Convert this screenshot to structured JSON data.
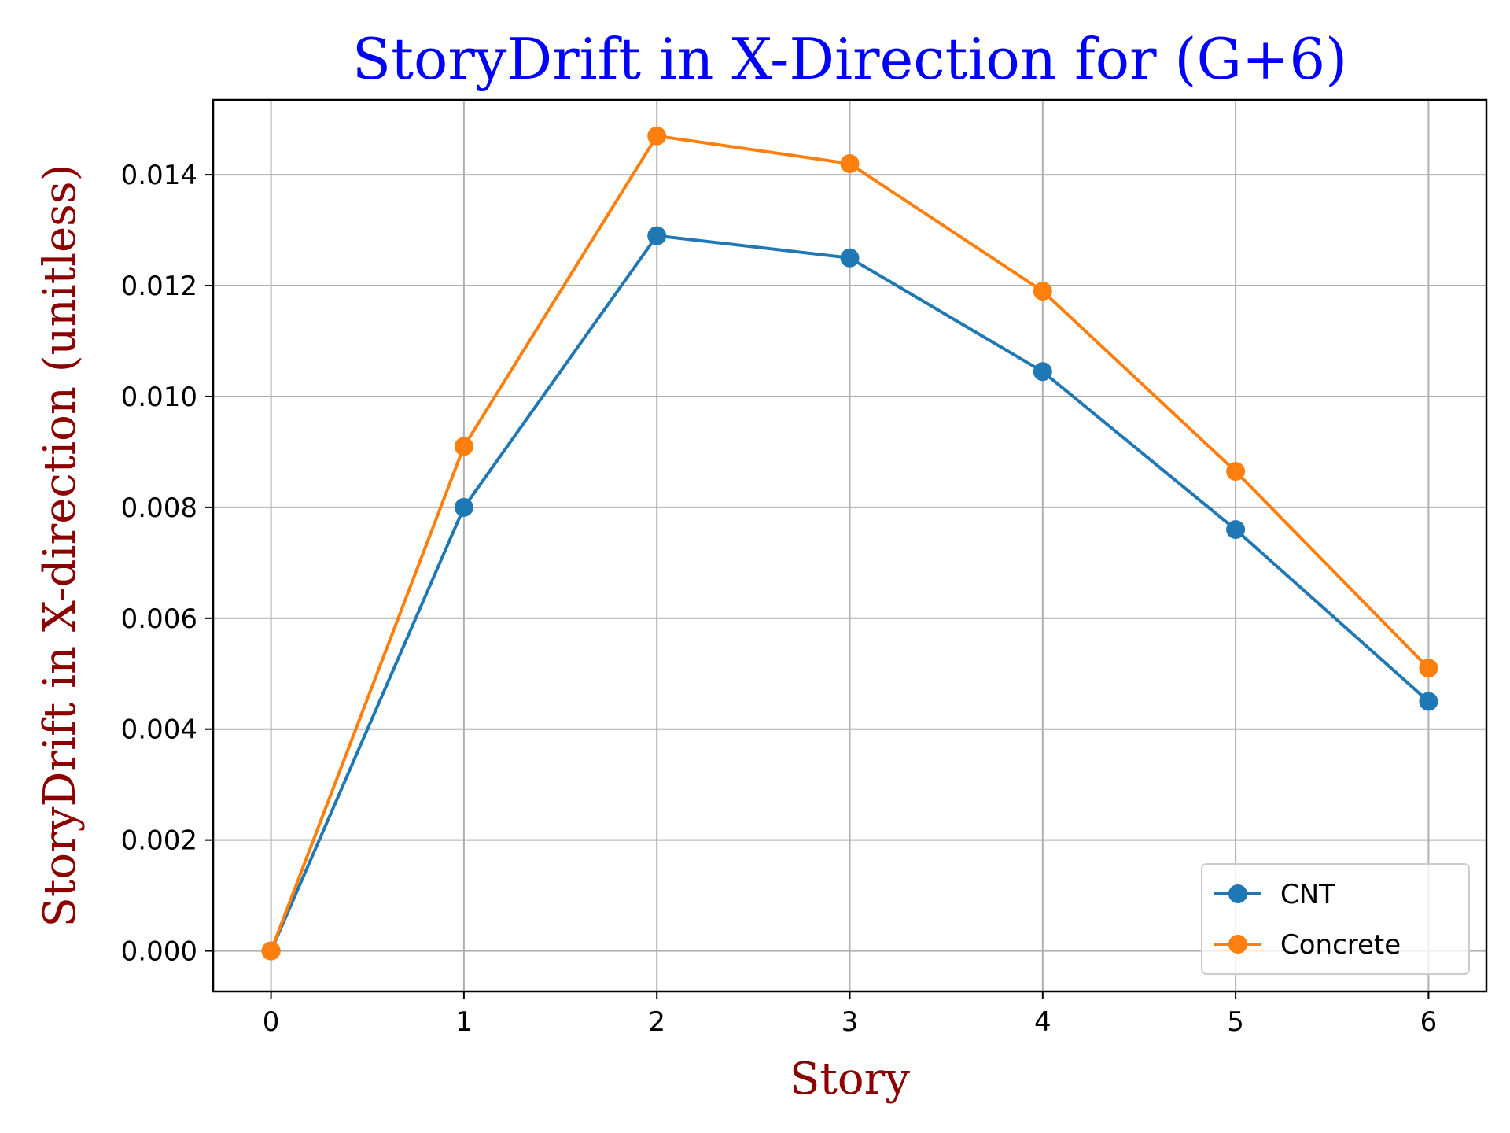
{
  "colors": {
    "title": "#0000ff",
    "axis_label": "#8b0000",
    "grid": "#b0b0b0",
    "frame": "#000000"
  },
  "chart_data": {
    "type": "line",
    "title": "StoryDrift in X-Direction for (G+6)",
    "xlabel": "Story",
    "ylabel": "StoryDrift in X-direction (unitless)",
    "x": [
      0,
      1,
      2,
      3,
      4,
      5,
      6
    ],
    "xlim": [
      -0.3,
      6.3
    ],
    "ylim": [
      -0.00073,
      0.01535
    ],
    "xticks": [
      0,
      1,
      2,
      3,
      4,
      5,
      6
    ],
    "xtick_labels": [
      "0",
      "1",
      "2",
      "3",
      "4",
      "5",
      "6"
    ],
    "yticks": [
      0,
      0.002,
      0.004,
      0.006,
      0.008,
      0.01,
      0.012,
      0.014
    ],
    "ytick_labels": [
      "0.000",
      "0.002",
      "0.004",
      "0.006",
      "0.008",
      "0.010",
      "0.012",
      "0.014"
    ],
    "grid": true,
    "legend_position": "lower-right",
    "series": [
      {
        "name": "CNT",
        "color": "#1f77b4",
        "marker": "circle",
        "values": [
          0,
          0.008,
          0.0129,
          0.0125,
          0.01045,
          0.0076,
          0.0045
        ]
      },
      {
        "name": "Concrete",
        "color": "#ff7f0e",
        "marker": "circle",
        "values": [
          0,
          0.0091,
          0.0147,
          0.0142,
          0.0119,
          0.00865,
          0.0051
        ]
      }
    ]
  }
}
